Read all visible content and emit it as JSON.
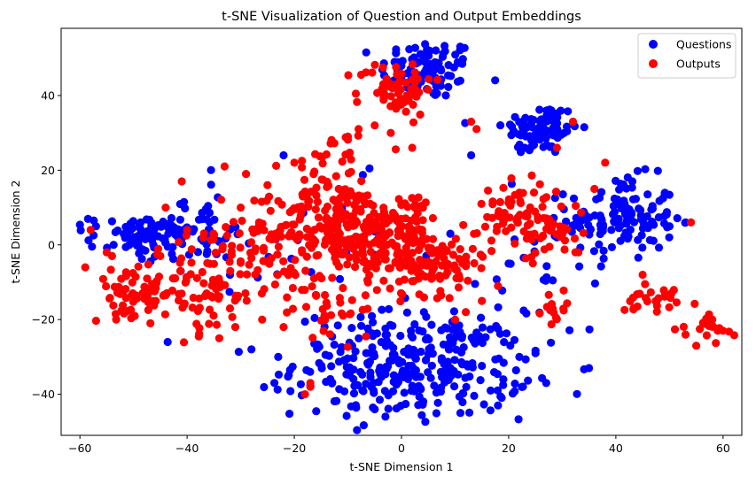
{
  "chart_data": {
    "type": "scatter",
    "title": "t-SNE Visualization of Question and Output Embeddings",
    "xlabel": "t-SNE Dimension 1",
    "ylabel": "t-SNE Dimension 2",
    "xlim": [
      -63.5,
      63.5
    ],
    "ylim": [
      -51,
      58
    ],
    "xticks": [
      -60,
      -40,
      -20,
      0,
      20,
      40,
      60
    ],
    "yticks": [
      -40,
      -20,
      0,
      20,
      40
    ],
    "xtick_labels": [
      "−60",
      "−40",
      "−20",
      "0",
      "20",
      "40",
      "60"
    ],
    "ytick_labels": [
      "−40",
      "−20",
      "0",
      "20",
      "40"
    ],
    "grid": false,
    "legend_position": "top-right",
    "series": [
      {
        "name": "Questions",
        "color": "#0000ff",
        "clusters": [
          {
            "cx": 5,
            "cy": 47,
            "sx": 4.5,
            "sy": 4,
            "n": 90
          },
          {
            "cx": 26,
            "cy": 31,
            "sx": 3.5,
            "sy": 3.5,
            "n": 90
          },
          {
            "cx": 41,
            "cy": 7,
            "sx": 5,
            "sy": 5.5,
            "n": 130
          },
          {
            "cx": 2,
            "cy": -32,
            "sx": 11,
            "sy": 7,
            "n": 330
          },
          {
            "cx": -48,
            "cy": 2,
            "sx": 5,
            "sy": 3,
            "n": 80
          },
          {
            "cx": -38,
            "cy": 4,
            "sx": 5,
            "sy": 4,
            "n": 50
          },
          {
            "cx": -20,
            "cy": -4,
            "sx": 15,
            "sy": 10,
            "n": 25
          },
          {
            "cx": 25,
            "cy": -10,
            "sx": 5,
            "sy": 8,
            "n": 15
          }
        ],
        "points": [
          [
            -57,
            5
          ],
          [
            -35,
            2
          ],
          [
            -34,
            1
          ],
          [
            -23,
            -30
          ],
          [
            -28,
            -28
          ],
          [
            -32,
            -8
          ],
          [
            50,
            5
          ],
          [
            53,
            6
          ],
          [
            22,
            -30
          ],
          [
            25,
            -29
          ],
          [
            27,
            -37
          ],
          [
            19,
            -36
          ],
          [
            18,
            -43
          ],
          [
            11,
            -45
          ],
          [
            -3,
            -46
          ],
          [
            -5,
            -44
          ],
          [
            20,
            -5
          ],
          [
            13,
            24
          ],
          [
            29,
            2
          ],
          [
            34,
            7
          ],
          [
            23,
            26
          ],
          [
            -22,
            24
          ]
        ]
      },
      {
        "name": "Outputs",
        "color": "#ff0000",
        "clusters": [
          {
            "cx": -1,
            "cy": 42,
            "sx": 3.5,
            "sy": 3.5,
            "n": 65
          },
          {
            "cx": -11,
            "cy": 5,
            "sx": 6,
            "sy": 6,
            "n": 230
          },
          {
            "cx": 1,
            "cy": 6,
            "sx": 3,
            "sy": 4,
            "n": 70
          },
          {
            "cx": 5,
            "cy": -5,
            "sx": 6,
            "sy": 4,
            "n": 120
          },
          {
            "cx": -50,
            "cy": -13,
            "sx": 4,
            "sy": 3,
            "n": 60
          },
          {
            "cx": -38,
            "cy": -12,
            "sx": 6,
            "sy": 6,
            "n": 80
          },
          {
            "cx": -27,
            "cy": 0,
            "sx": 6,
            "sy": 8,
            "n": 70
          },
          {
            "cx": 22,
            "cy": 9,
            "sx": 4,
            "sy": 4,
            "n": 60
          },
          {
            "cx": 28,
            "cy": 3,
            "sx": 3,
            "sy": 3,
            "n": 40
          },
          {
            "cx": -13,
            "cy": 22,
            "sx": 3,
            "sy": 4,
            "n": 25
          },
          {
            "cx": -13,
            "cy": -15,
            "sx": 5,
            "sy": 5,
            "n": 40
          },
          {
            "cx": 46,
            "cy": -14,
            "sx": 2.5,
            "sy": 2,
            "n": 25
          },
          {
            "cx": 29,
            "cy": -17,
            "sx": 2,
            "sy": 2,
            "n": 15
          },
          {
            "cx": 57,
            "cy": -22,
            "sx": 2,
            "sy": 2.5,
            "n": 18
          }
        ],
        "points": [
          [
            -58,
            4
          ],
          [
            -59,
            -6
          ],
          [
            -55,
            -2
          ],
          [
            -54,
            -3
          ],
          [
            -44,
            10
          ],
          [
            -41,
            17
          ],
          [
            -33,
            21
          ],
          [
            -29,
            19
          ],
          [
            -34,
            -25
          ],
          [
            -31,
            -22
          ],
          [
            -18,
            -40
          ],
          [
            -17,
            -38
          ],
          [
            -17,
            -37
          ],
          [
            32,
            33
          ],
          [
            14,
            31
          ],
          [
            13,
            33
          ],
          [
            2,
            26
          ],
          [
            -2,
            30
          ],
          [
            -5,
            32
          ],
          [
            -10,
            29
          ],
          [
            -8,
            31
          ],
          [
            -20,
            22
          ],
          [
            29,
            26
          ],
          [
            22,
            14
          ],
          [
            38,
            22
          ],
          [
            36,
            15
          ],
          [
            33,
            -2
          ],
          [
            45,
            -8
          ],
          [
            53,
            -24
          ],
          [
            55,
            -27
          ],
          [
            59,
            -23
          ],
          [
            60,
            -23
          ],
          [
            58,
            -20
          ],
          [
            54,
            6
          ],
          [
            -25,
            16
          ],
          [
            -30,
            10
          ],
          [
            -40,
            4
          ],
          [
            -45,
            -3
          ],
          [
            -22,
            -22
          ],
          [
            -26,
            -20
          ],
          [
            -32,
            -17
          ],
          [
            18,
            -11
          ],
          [
            15,
            -15
          ],
          [
            12,
            -18
          ],
          [
            10,
            -20
          ]
        ]
      }
    ]
  }
}
